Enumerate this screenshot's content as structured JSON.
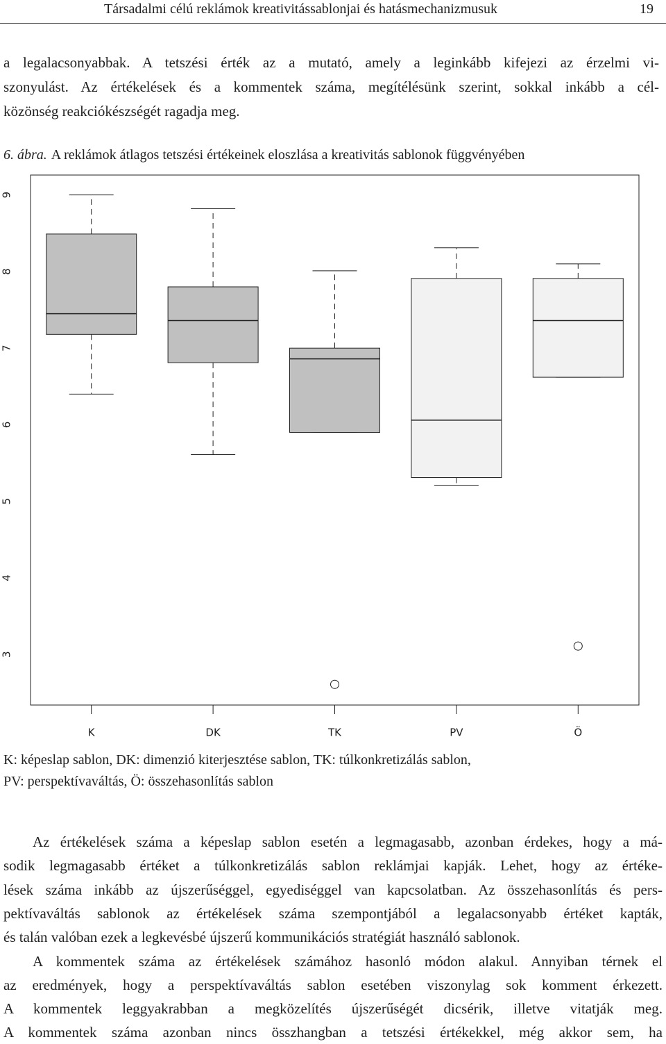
{
  "header": {
    "title": "Társadalmi célú reklámok kreativitássablonjai és hatásmechanizmusuk",
    "page": "19"
  },
  "intro": {
    "lines": [
      "a legalacsonyabbak. A tetszési érték az a mutató, amely a leginkább kifejezi az érzelmi vi-",
      "szonyulást. Az értékelések és a kommentek száma, megítélésünk szerint, sokkal inkább a cél-",
      "közönség reakciókészségét ragadja meg."
    ]
  },
  "caption": {
    "label": "6. ábra.",
    "text": "A reklámok átlagos tetszési értékeinek eloszlása a kreativitás sablonok függvényében"
  },
  "chart_data": {
    "type": "box",
    "categories": [
      "K",
      "DK",
      "TK",
      "PV",
      "Ö"
    ],
    "boxes": [
      {
        "low": 6.4,
        "q1": 7.18,
        "median": 7.45,
        "q3": 8.49,
        "high": 9.0,
        "outliers": [],
        "color": "#c0c0c0"
      },
      {
        "low": 5.61,
        "q1": 6.81,
        "median": 7.36,
        "q3": 7.8,
        "high": 8.82,
        "outliers": [],
        "color": "#c0c0c0"
      },
      {
        "low": 5.9,
        "q1": 5.9,
        "median": 6.86,
        "q3": 7.0,
        "high": 8.01,
        "outliers": [
          2.61
        ],
        "color": "#c0c0c0"
      },
      {
        "low": 5.21,
        "q1": 5.31,
        "median": 6.06,
        "q3": 7.91,
        "high": 8.31,
        "outliers": [],
        "color": "#f2f2f2"
      },
      {
        "low": 6.62,
        "q1": 6.62,
        "median": 7.36,
        "q3": 7.91,
        "high": 8.1,
        "outliers": [
          3.11
        ],
        "color": "#f2f2f2"
      }
    ],
    "ylim": [
      2.34,
      9.26
    ],
    "yticks": [
      3,
      4,
      5,
      6,
      7,
      8,
      9
    ]
  },
  "legend": {
    "lines": [
      "K: képeslap sablon, DK: dimenzió kiterjesztése sablon, TK: túlkonkretizálás sablon,",
      "PV: perspektívaváltás, Ö: összehasonlítás sablon"
    ]
  },
  "body": {
    "paragraphs": [
      [
        "Az értékelések száma a képeslap sablon esetén a legmagasabb, azonban érdekes, hogy a má-",
        "sodik legmagasabb értéket a túlkonkretizálás sablon reklámjai kapják. Lehet, hogy az értéke-",
        "lések száma inkább az újszerűséggel, egyediséggel van kapcsolatban. Az összehasonlítás és pers-",
        "pektívaváltás sablonok az értékelések száma szempontjából a legalacsonyabb értéket kapták,",
        "és talán valóban ezek a legkevésbé újszerű kommunikációs stratégiát használó sablonok."
      ],
      [
        "A kommentek száma az értékelések számához hasonló módon alakul. Annyiban térnek el",
        "az eredmények, hogy a perspektívaváltás sablon esetében viszonylag sok komment érkezett.",
        "A kommentek leggyakrabban a megközelítés újszerűségét dicsérik, illetve vitatják meg.",
        "A kommentek száma azonban nincs összhangban a tetszési értékekkel, még akkor sem, ha"
      ]
    ]
  }
}
